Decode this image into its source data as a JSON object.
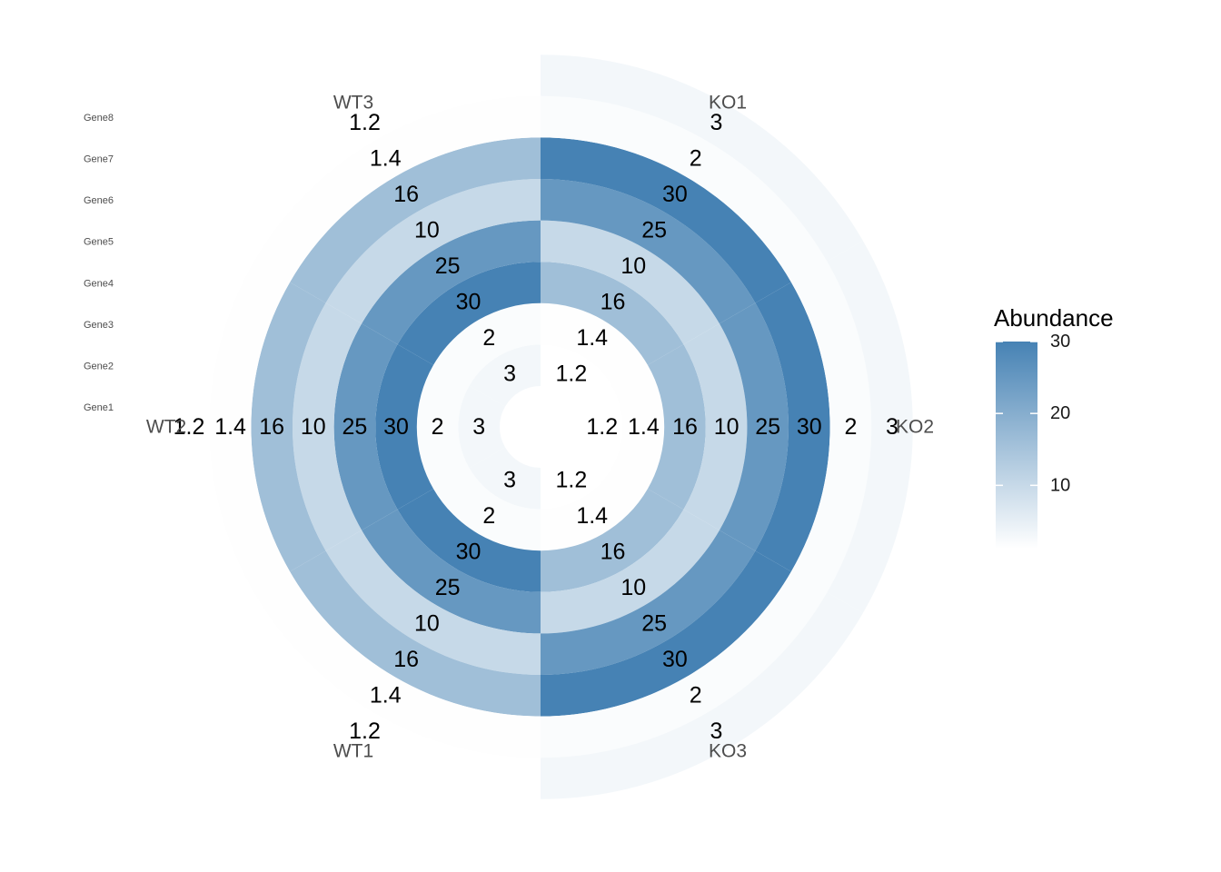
{
  "chart_data": {
    "type": "heatmap",
    "subtype": "polar-heatmap",
    "samples": [
      "KO1",
      "KO2",
      "KO3",
      "WT1",
      "WT2",
      "WT3"
    ],
    "genes": [
      "Gene1",
      "Gene2",
      "Gene3",
      "Gene4",
      "Gene5",
      "Gene6",
      "Gene7",
      "Gene8"
    ],
    "values": {
      "KO1": [
        1.2,
        1.4,
        16,
        10,
        25,
        30,
        2,
        3
      ],
      "KO2": [
        1.2,
        1.4,
        16,
        10,
        25,
        30,
        2,
        3
      ],
      "KO3": [
        1.2,
        1.4,
        16,
        10,
        25,
        30,
        2,
        3
      ],
      "WT1": [
        3,
        2,
        30,
        25,
        10,
        16,
        1.4,
        1.2
      ],
      "WT2": [
        3,
        2,
        30,
        25,
        10,
        16,
        1.4,
        1.2
      ],
      "WT3": [
        3,
        2,
        30,
        25,
        10,
        16,
        1.4,
        1.2
      ]
    },
    "value_labels": {
      "KO1": [
        "1.2",
        "1.4",
        "16",
        "10",
        "25",
        "30",
        "2",
        "3"
      ],
      "KO2": [
        "1.2",
        "1.4",
        "16",
        "10",
        "25",
        "30",
        "2",
        "3"
      ],
      "KO3": [
        "1.2",
        "1.4",
        "16",
        "10",
        "25",
        "30",
        "2",
        "3"
      ],
      "WT1": [
        "3",
        "2",
        "30",
        "25",
        "10",
        "16",
        "1.4",
        "1.2"
      ],
      "WT2": [
        "3",
        "2",
        "30",
        "25",
        "10",
        "16",
        "1.4",
        "1.2"
      ],
      "WT3": [
        "3",
        "2",
        "30",
        "25",
        "10",
        "16",
        "1.4",
        "1.2"
      ]
    },
    "legend": {
      "title": "Abundance",
      "ticks": [
        10,
        20,
        30
      ],
      "tick_labels": [
        "10",
        "20",
        "30"
      ],
      "range": [
        1.2,
        30
      ],
      "low_color": "#ffffff",
      "high_color": "#4682b4",
      "placement": "right"
    },
    "grid": false
  }
}
